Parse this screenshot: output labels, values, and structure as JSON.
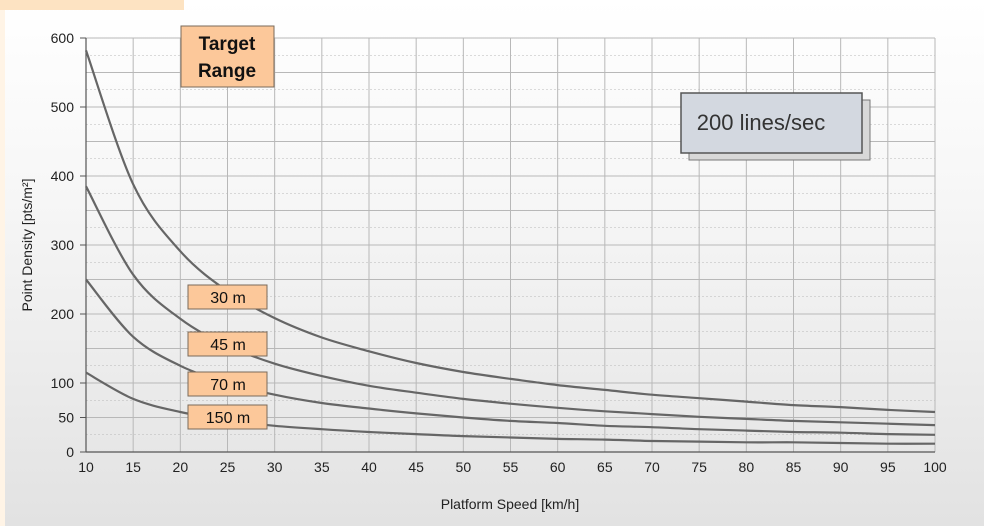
{
  "chart_data": {
    "type": "line",
    "xlabel": "Platform Speed [km/h]",
    "ylabel": "Point Density [pts/m²]",
    "xlim": [
      10,
      100
    ],
    "ylim": [
      0,
      600
    ],
    "x_ticks": [
      "10",
      "15",
      "20",
      "25",
      "30",
      "35",
      "40",
      "45",
      "50",
      "55",
      "60",
      "65",
      "70",
      "75",
      "80",
      "85",
      "90",
      "95",
      "100"
    ],
    "y_ticks": [
      "0",
      "50",
      "100",
      "200",
      "300",
      "400",
      "500",
      "600"
    ],
    "grid": true,
    "series": [
      {
        "name": "30 m",
        "x": [
          10,
          15,
          20,
          25,
          30,
          35,
          40,
          45,
          50,
          55,
          60,
          65,
          70,
          75,
          80,
          85,
          90,
          95,
          100
        ],
        "y": [
          582,
          388,
          291,
          233,
          194,
          166,
          146,
          129,
          116,
          106,
          97,
          90,
          83,
          78,
          73,
          68,
          65,
          61,
          58
        ]
      },
      {
        "name": "45 m",
        "x": [
          10,
          15,
          20,
          25,
          30,
          35,
          40,
          45,
          50,
          55,
          60,
          65,
          70,
          75,
          80,
          85,
          90,
          95,
          100
        ],
        "y": [
          385,
          257,
          193,
          154,
          128,
          110,
          96,
          86,
          77,
          70,
          64,
          59,
          55,
          51,
          48,
          45,
          43,
          41,
          39
        ]
      },
      {
        "name": "70 m",
        "x": [
          10,
          15,
          20,
          25,
          30,
          35,
          40,
          45,
          50,
          55,
          60,
          65,
          70,
          75,
          80,
          85,
          90,
          95,
          100
        ],
        "y": [
          250,
          167,
          125,
          100,
          83,
          71,
          63,
          56,
          50,
          45,
          42,
          38,
          36,
          33,
          31,
          29,
          28,
          26,
          25
        ]
      },
      {
        "name": "150 m",
        "x": [
          10,
          15,
          20,
          25,
          30,
          35,
          40,
          45,
          50,
          55,
          60,
          65,
          70,
          75,
          80,
          85,
          90,
          95,
          100
        ],
        "y": [
          115,
          77,
          58,
          46,
          38,
          33,
          29,
          26,
          23,
          21,
          19,
          18,
          16,
          15,
          14,
          14,
          13,
          12,
          12
        ]
      }
    ],
    "annotations": {
      "header": [
        "Target",
        "Range"
      ],
      "lines_per_sec": "200 lines/sec"
    }
  },
  "colors": {
    "curve": "#666666",
    "label_fill": "#fcc89a",
    "label_border": "#7a6a5a",
    "grid": "#b8b8b8",
    "lines_box_fill": "#d3d8e0",
    "lines_box_border": "#555555"
  }
}
